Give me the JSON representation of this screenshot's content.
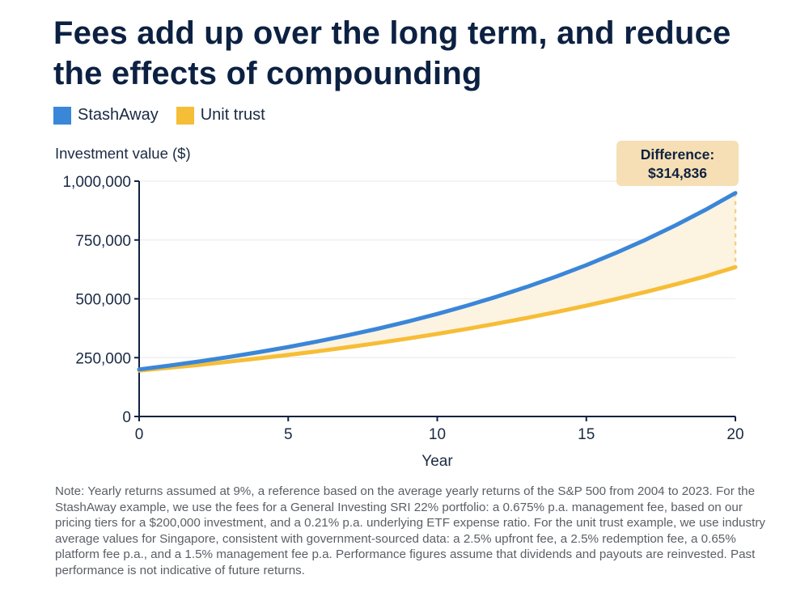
{
  "title": "Fees add up over the long term, and reduce the effects of compounding",
  "legend": [
    {
      "label": "StashAway",
      "color": "#3a86d9"
    },
    {
      "label": "Unit trust",
      "color": "#f6bd36"
    }
  ],
  "callout": {
    "line1": "Difference:",
    "line2": "$314,836"
  },
  "note": "Note: Yearly returns assumed at 9%, a reference based on the average yearly returns of the S&P 500 from 2004 to 2023. For the StashAway example, we use the fees for a General Investing SRI 22% portfolio: a 0.675% p.a. management fee, based on our pricing tiers for a $200,000 investment, and a 0.21% p.a. underlying ETF expense ratio. For the unit trust example, we use industry average values for Singapore, consistent with government-sourced data: a 2.5% upfront fee, a 2.5% redemption fee, a 0.65% platform fee p.a., and a 1.5% management fee p.a. Performance figures assume that dividends and payouts are reinvested. Past performance is not indicative of future returns.",
  "chart_data": {
    "type": "line",
    "ylabel": "Investment value ($)",
    "xlabel": "Year",
    "xlim": [
      0,
      20
    ],
    "ylim": [
      0,
      1000000
    ],
    "x_ticks": [
      0,
      5,
      10,
      15,
      20
    ],
    "x_tick_labels": [
      "0",
      "5",
      "10",
      "15",
      "20"
    ],
    "y_ticks": [
      0,
      250000,
      500000,
      750000,
      1000000
    ],
    "y_tick_labels": [
      "0",
      "250,000",
      "500,000",
      "750,000",
      "1,000,000"
    ],
    "grid": true,
    "difference_shaded": true,
    "series": [
      {
        "name": "StashAway",
        "color": "#3a86d9",
        "x": [
          0,
          1,
          2,
          3,
          4,
          5,
          6,
          7,
          8,
          9,
          10,
          11,
          12,
          13,
          14,
          15,
          16,
          17,
          18,
          19,
          20
        ],
        "values": [
          200000,
          216200,
          233700,
          252700,
          273200,
          295300,
          319200,
          345100,
          373000,
          403200,
          435800,
          471100,
          509300,
          550500,
          595100,
          643300,
          695400,
          751700,
          812600,
          878400,
          949600
        ]
      },
      {
        "name": "Unit trust",
        "color": "#f6bd36",
        "x": [
          0,
          1,
          2,
          3,
          4,
          5,
          6,
          7,
          8,
          9,
          10,
          11,
          12,
          13,
          14,
          15,
          16,
          17,
          18,
          19,
          20
        ],
        "values": [
          195000,
          206800,
          219300,
          232600,
          246700,
          261600,
          277400,
          294200,
          312000,
          330900,
          350900,
          372200,
          394700,
          418600,
          443900,
          470800,
          499300,
          529500,
          561500,
          595500,
          634800
        ]
      }
    ]
  }
}
